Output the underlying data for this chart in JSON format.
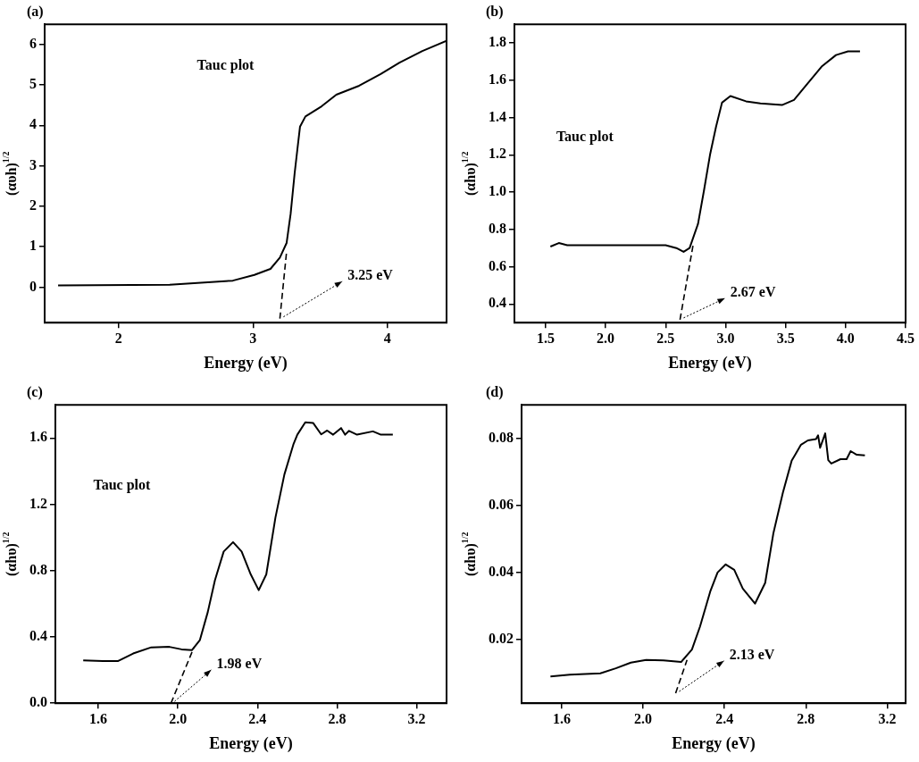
{
  "chart_data": [
    {
      "type": "line",
      "title": "(a)",
      "xlabel": "Energy (eV)",
      "ylabel": "(αυh)$^{1/2}$",
      "xlim": [
        1.45,
        4.44
      ],
      "xticks": [
        2,
        3,
        4
      ],
      "ylim": [
        -0.88,
        6.5
      ],
      "yticks": [
        0,
        1,
        2,
        3,
        4,
        5,
        6
      ],
      "annotations": [
        "Tauc plot",
        "3.25 eV"
      ],
      "series": [
        {
          "color": "#000000",
          "x": [
            1.55,
            2.38,
            2.85,
            3.01,
            3.13,
            3.2,
            3.25,
            3.28,
            3.31,
            3.33,
            3.35,
            3.39,
            3.51,
            3.62,
            3.79,
            3.95,
            4.09,
            4.26,
            4.44
          ],
          "values": [
            0.04,
            0.06,
            0.16,
            0.3,
            0.45,
            0.73,
            1.09,
            1.81,
            2.82,
            3.4,
            3.97,
            4.22,
            4.47,
            4.76,
            4.98,
            5.27,
            5.55,
            5.84,
            6.09
          ]
        },
        {
          "type": "line",
          "line_style": "dashed",
          "color": "#000000",
          "x": [
            3.2,
            3.25
          ],
          "values": [
            -0.78,
            0.88
          ]
        }
      ]
    },
    {
      "type": "line",
      "title": "(b)",
      "xlabel": "Energy (eV)",
      "ylabel": "(αhυ)$^{1/2}$",
      "xlim": [
        1.24,
        4.5
      ],
      "xticks": [
        1.5,
        {
          "value": 2,
          "label": "2.0"
        },
        2.5,
        {
          "value": 3,
          "label": "3.0"
        },
        3.5,
        {
          "value": 4,
          "label": "4.0"
        },
        4.5
      ],
      "ylim": [
        0.3,
        1.9
      ],
      "yticks": [
        0.4,
        0.6,
        0.8,
        {
          "value": 1,
          "label": "1.0"
        },
        1.2,
        1.4,
        1.6,
        1.8
      ],
      "annotations": [
        "Tauc plot",
        "2.67 eV"
      ],
      "series": [
        {
          "color": "#000000",
          "x": [
            1.54,
            1.61,
            1.68,
            2.0,
            2.5,
            2.59,
            2.65,
            2.7,
            2.77,
            2.82,
            2.87,
            2.92,
            2.97,
            3.04,
            3.17,
            3.29,
            3.47,
            3.57,
            3.67,
            3.8,
            3.92,
            4.02,
            4.12
          ],
          "values": [
            0.708,
            0.727,
            0.715,
            0.715,
            0.715,
            0.7,
            0.68,
            0.7,
            0.83,
            1.01,
            1.2,
            1.35,
            1.48,
            1.515,
            1.487,
            1.476,
            1.467,
            1.494,
            1.572,
            1.673,
            1.735,
            1.755,
            1.755
          ]
        },
        {
          "type": "line",
          "line_style": "dashed",
          "color": "#000000",
          "x": [
            2.62,
            2.73
          ],
          "values": [
            0.316,
            0.72
          ]
        }
      ]
    },
    {
      "type": "line",
      "title": "(c)",
      "xlabel": "Energy (eV)",
      "ylabel": "(αhυ)$^{1/2}$",
      "xlim": [
        1.384,
        3.35
      ],
      "xticks": [
        1.6,
        {
          "value": 2,
          "label": "2.0"
        },
        2.4,
        2.8,
        3.2
      ],
      "ylim": [
        0,
        1.8
      ],
      "yticks": [
        {
          "value": 0,
          "label": "0.0"
        },
        0.4,
        0.8,
        1.2,
        1.6
      ],
      "annotations": [
        "Tauc plot",
        "1.98 eV"
      ],
      "series": [
        {
          "color": "#000000",
          "x": [
            1.524,
            1.623,
            1.7,
            1.775,
            1.866,
            1.957,
            2.018,
            2.07,
            2.11,
            2.15,
            2.186,
            2.23,
            2.277,
            2.32,
            2.366,
            2.406,
            2.444,
            2.49,
            2.535,
            2.58,
            2.6,
            2.64,
            2.68,
            2.72,
            2.75,
            2.78,
            2.82,
            2.84,
            2.86,
            2.9,
            2.98,
            3.02,
            3.08
          ],
          "values": [
            0.259,
            0.254,
            0.255,
            0.3,
            0.337,
            0.34,
            0.325,
            0.32,
            0.38,
            0.55,
            0.742,
            0.915,
            0.972,
            0.915,
            0.777,
            0.682,
            0.777,
            1.12,
            1.38,
            1.56,
            1.62,
            1.695,
            1.69,
            1.622,
            1.645,
            1.62,
            1.66,
            1.62,
            1.643,
            1.62,
            1.64,
            1.62,
            1.62
          ]
        },
        {
          "type": "line",
          "line_style": "dashed",
          "color": "#000000",
          "x": [
            1.965,
            2.08
          ],
          "values": [
            0,
            0.336
          ]
        }
      ]
    },
    {
      "type": "line",
      "title": "(d)",
      "xlabel": "Energy (eV)",
      "ylabel": "(αhυ)$^{1/2}$",
      "xlim": [
        1.403,
        3.29
      ],
      "xticks": [
        1.6,
        {
          "value": 2,
          "label": "2.0"
        },
        2.4,
        2.8,
        3.2
      ],
      "ylim": [
        0.001,
        0.09
      ],
      "yticks": [
        0.02,
        0.04,
        0.06,
        0.08
      ],
      "annotations": [
        "2.13 eV"
      ],
      "series": [
        {
          "color": "#000000",
          "x": [
            1.545,
            1.64,
            1.79,
            1.866,
            1.94,
            2.015,
            2.1,
            2.187,
            2.24,
            2.28,
            2.33,
            2.366,
            2.406,
            2.448,
            2.49,
            2.55,
            2.6,
            2.64,
            2.687,
            2.73,
            2.776,
            2.81,
            2.85,
            2.86,
            2.87,
            2.895,
            2.91,
            2.925,
            2.97,
            3.0,
            3.02,
            3.05,
            3.09
          ],
          "values": [
            0.009,
            0.0095,
            0.0099,
            0.0114,
            0.0131,
            0.0139,
            0.0138,
            0.0133,
            0.017,
            0.0239,
            0.0343,
            0.04,
            0.0424,
            0.0408,
            0.0352,
            0.0307,
            0.0369,
            0.0516,
            0.0638,
            0.0733,
            0.0781,
            0.0794,
            0.0798,
            0.0809,
            0.0772,
            0.0815,
            0.0735,
            0.0725,
            0.0738,
            0.0738,
            0.0762,
            0.0751,
            0.0749
          ]
        },
        {
          "type": "line",
          "line_style": "dashed",
          "color": "#000000",
          "x": [
            2.16,
            2.216
          ],
          "values": [
            0.004,
            0.0139
          ]
        }
      ]
    }
  ]
}
